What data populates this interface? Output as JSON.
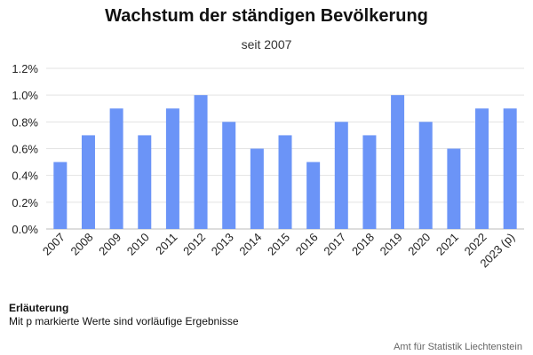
{
  "chart_data": {
    "type": "bar",
    "title": "Wachstum der ständigen Bevölkerung",
    "subtitle": "seit 2007",
    "categories": [
      "2007",
      "2008",
      "2009",
      "2010",
      "2011",
      "2012",
      "2013",
      "2014",
      "2015",
      "2016",
      "2017",
      "2018",
      "2019",
      "2020",
      "2021",
      "2022",
      "2023 (p)"
    ],
    "values": [
      0.5,
      0.7,
      0.9,
      0.7,
      0.9,
      1.0,
      0.8,
      0.6,
      0.7,
      0.5,
      0.8,
      0.7,
      1.0,
      0.8,
      0.6,
      0.9,
      0.9
    ],
    "y_ticks": [
      "0.0%",
      "0.2%",
      "0.4%",
      "0.6%",
      "0.8%",
      "1.0%",
      "1.2%"
    ],
    "ylim": [
      0,
      1.2
    ],
    "unit": "%",
    "grid": true,
    "bar_color": "#6b94f7"
  },
  "note": {
    "title": "Erläuterung",
    "text": "Mit p markierte Werte sind vorläufige Ergebnisse"
  },
  "source": "Amt für Statistik Liechtenstein"
}
